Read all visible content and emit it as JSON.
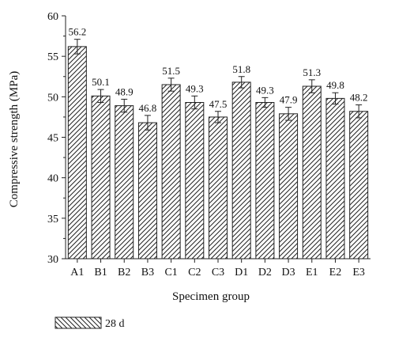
{
  "chart_data": {
    "type": "bar",
    "categories": [
      "A1",
      "B1",
      "B2",
      "B3",
      "C1",
      "C2",
      "C3",
      "D1",
      "D2",
      "D3",
      "E1",
      "E2",
      "E3"
    ],
    "series": [
      {
        "name": "28 d",
        "values": [
          56.2,
          50.1,
          48.9,
          46.8,
          51.5,
          49.3,
          47.5,
          51.8,
          49.3,
          47.9,
          51.3,
          49.8,
          48.2
        ],
        "errors": [
          0.9,
          0.8,
          0.8,
          0.9,
          0.8,
          0.8,
          0.7,
          0.7,
          0.6,
          0.8,
          0.8,
          0.7,
          0.8
        ],
        "pattern": "diagonal-hatch"
      }
    ],
    "data_labels": [
      "56.2",
      "50.1",
      "48.9",
      "46.8",
      "51.5",
      "49.3",
      "47.5",
      "51.8",
      "49.3",
      "47.9",
      "51.3",
      "49.8",
      "48.2"
    ],
    "xlabel": "Specimen group",
    "ylabel": "Compressive strength (MPa)",
    "ylim": [
      30,
      60
    ],
    "yticks": [
      30,
      35,
      40,
      45,
      50,
      55,
      60
    ],
    "grid": false,
    "legend": "bottom-left",
    "colors": {
      "bar_fill": "#ffffff",
      "hatch": "#222222",
      "axis": "#222222"
    }
  }
}
